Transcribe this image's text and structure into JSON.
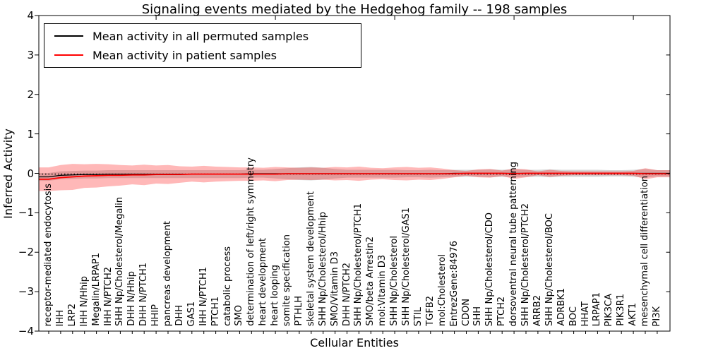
{
  "figure": {
    "title": "Signaling events mediated by the Hedgehog family -- 198 samples",
    "xlabel": "Cellular Entities",
    "ylabel": "Inferred Activity"
  },
  "legend": {
    "items": [
      {
        "label": "Mean activity in all permuted samples",
        "color": "#000000"
      },
      {
        "label": "Mean activity in patient samples",
        "color": "#ff0000"
      }
    ]
  },
  "axes": {
    "ylim": [
      -4,
      4
    ],
    "y_ticks": [
      4,
      3,
      2,
      1,
      0,
      -1,
      -2,
      -3,
      -4
    ],
    "y_tick_labels": [
      "4",
      "3",
      "2",
      "1",
      "0",
      "−1",
      "−2",
      "−3",
      "−4"
    ]
  },
  "chart_data": {
    "type": "line",
    "title": "Signaling events mediated by the Hedgehog family -- 198 samples",
    "xlabel": "Cellular Entities",
    "ylabel": "Inferred Activity",
    "ylim": [
      -4,
      4
    ],
    "grid": false,
    "legend_position": "upper left",
    "reference_line": {
      "y": 0,
      "style": "dotted",
      "color": "#000000"
    },
    "categories": [
      "receptor-mediated endocytosis",
      "IHH",
      "LRP2",
      "IHH N/Hhip",
      "Megalin/LRPAP1",
      "IHH N/PTCH2",
      "SHH Np/Cholesterol/Megalin",
      "DHH N/Hhip",
      "DHH N/PTCH1",
      "HHIP",
      "pancreas development",
      "DHH",
      "GAS1",
      "IHH N/PTCH1",
      "PTCH1",
      "catabolic process",
      "SMO",
      "determination of left/right symmetry",
      "heart development",
      "heart looping",
      "somite specification",
      "PTHLH",
      "skeletal system development",
      "SHH Np/Cholesterol/Hhip",
      "SMO/Vitamin D3",
      "DHH N/PTCH2",
      "SHH Np/Cholesterol/PTCH1",
      "SMO/beta Arrestin2",
      "mol:Vitamin D3",
      "SHH Np/Cholesterol",
      "SHH Np/Cholesterol/GAS1",
      "STIL",
      "TGFB2",
      "mol:Cholesterol",
      "EntrezGene:84976",
      "CDON",
      "SHH",
      "SHH Np/Cholesterol/CDO",
      "PTCH2",
      "dorsoventral neural tube patterning",
      "SHH Np/Cholesterol/PTCH2",
      "ARRB2",
      "SHH Np/Cholesterol/BOC",
      "ADRBK1",
      "BOC",
      "HHAT",
      "LRPAP1",
      "PIK3CA",
      "PIK3R1",
      "AKT1",
      "mesenchymal cell differentiation",
      "PI3K"
    ],
    "series": [
      {
        "name": "Mean activity in all permuted samples",
        "color": "#000000",
        "band_color": "#999999",
        "band_opacity": 0.4,
        "values": [
          -0.09,
          -0.05,
          -0.04,
          -0.03,
          -0.03,
          -0.02,
          -0.02,
          -0.02,
          -0.02,
          -0.02,
          -0.02,
          -0.02,
          -0.02,
          -0.02,
          -0.02,
          -0.02,
          -0.02,
          -0.01,
          -0.01,
          -0.01,
          -0.01,
          -0.01,
          -0.01,
          -0.01,
          -0.01,
          -0.01,
          -0.01,
          -0.01,
          -0.01,
          -0.01,
          -0.01,
          -0.01,
          -0.01,
          -0.01,
          0,
          0,
          0,
          0,
          0,
          0,
          0,
          0,
          0,
          0,
          0,
          0,
          0,
          0,
          0,
          0,
          0,
          0
        ],
        "std": [
          0.1,
          0.1,
          0.1,
          0.1,
          0.1,
          0.1,
          0.1,
          0.1,
          0.1,
          0.1,
          0.1,
          0.1,
          0.1,
          0.1,
          0.1,
          0.1,
          0.1,
          0.1,
          0.1,
          0.12,
          0.14,
          0.16,
          0.17,
          0.15,
          0.12,
          0.1,
          0.1,
          0.1,
          0.1,
          0.1,
          0.09,
          0.09,
          0.1,
          0.09,
          0.09,
          0.09,
          0.09,
          0.1,
          0.09,
          0.1,
          0.09,
          0.09,
          0.1,
          0.09,
          0.09,
          0.09,
          0.09,
          0.08,
          0.08,
          0.09,
          0.11,
          0.08
        ]
      },
      {
        "name": "Mean activity in patient samples",
        "color": "#ff0000",
        "band_color": "#ff0000",
        "band_opacity": 0.28,
        "values": [
          -0.15,
          -0.11,
          -0.09,
          -0.07,
          -0.06,
          -0.05,
          -0.05,
          -0.04,
          -0.04,
          -0.03,
          -0.03,
          -0.03,
          -0.02,
          -0.02,
          -0.02,
          -0.02,
          -0.02,
          -0.02,
          -0.02,
          -0.02,
          -0.01,
          -0.01,
          -0.01,
          -0.01,
          -0.01,
          -0.01,
          -0.01,
          -0.01,
          -0.01,
          -0.01,
          -0.01,
          -0.01,
          -0.01,
          -0.01,
          -0.01,
          0,
          0,
          0,
          0,
          -0.01,
          0,
          0,
          0,
          0,
          0,
          0,
          0,
          0,
          0,
          0,
          -0.01,
          -0.01
        ],
        "std": [
          0.3,
          0.32,
          0.33,
          0.3,
          0.3,
          0.28,
          0.26,
          0.24,
          0.26,
          0.23,
          0.24,
          0.21,
          0.19,
          0.21,
          0.19,
          0.18,
          0.17,
          0.17,
          0.16,
          0.18,
          0.16,
          0.15,
          0.16,
          0.15,
          0.17,
          0.16,
          0.18,
          0.15,
          0.14,
          0.16,
          0.17,
          0.15,
          0.16,
          0.13,
          0.09,
          0.06,
          0.1,
          0.11,
          0.07,
          0.13,
          0.1,
          0.05,
          0.09,
          0.06,
          0.05,
          0.05,
          0.05,
          0.05,
          0.05,
          0.06,
          0.14,
          0.09
        ]
      }
    ]
  }
}
